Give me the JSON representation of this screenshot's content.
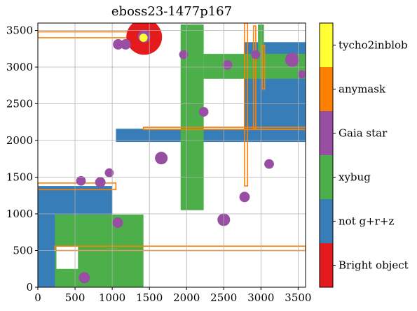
{
  "chart_data": {
    "type": "heatmap",
    "title": "eboss23-1477p167",
    "xlabel": "",
    "ylabel": "",
    "xlim": [
      0,
      3600
    ],
    "ylim": [
      0,
      3600
    ],
    "grid": true,
    "xticks": [
      "0",
      "500",
      "1000",
      "1500",
      "2000",
      "2500",
      "3000",
      "3500"
    ],
    "yticks": [
      "0",
      "500",
      "1000",
      "1500",
      "2000",
      "2500",
      "3000",
      "3500"
    ],
    "colorbar": {
      "placement": "right",
      "categories": [
        {
          "label": "Bright object",
          "color": "#e41a1c"
        },
        {
          "label": "not g+r+z",
          "color": "#377eb8"
        },
        {
          "label": "xybug",
          "color": "#4daf4a"
        },
        {
          "label": "Gaia star",
          "color": "#984ea3"
        },
        {
          "label": "anymask",
          "color": "#ff7f00"
        },
        {
          "label": "tycho2inblob",
          "color": "#ffff33"
        }
      ]
    },
    "regions": {
      "not_grz": [
        {
          "x": [
            0,
            1000
          ],
          "y": [
            0,
            1380
          ]
        },
        {
          "x": [
            1050,
            3600
          ],
          "y": [
            1980,
            2160
          ]
        },
        {
          "x": [
            2770,
            3600
          ],
          "y": [
            2160,
            3340
          ]
        }
      ],
      "xybug": [
        {
          "x": [
            230,
            1420
          ],
          "y": [
            0,
            990
          ]
        },
        {
          "x": [
            1920,
            2230
          ],
          "y": [
            1050,
            3580
          ]
        },
        {
          "x": [
            2230,
            3600
          ],
          "y": [
            2840,
            3180
          ]
        },
        {
          "x": [
            2960,
            3040
          ],
          "y": [
            3180,
            3580
          ]
        }
      ],
      "anymask": [
        {
          "x": [
            0,
            1050
          ],
          "y": [
            1330,
            1420
          ]
        },
        {
          "x": [
            0,
            1450
          ],
          "y": [
            3400,
            3480
          ]
        },
        {
          "x": [
            230,
            3600
          ],
          "y": [
            500,
            560
          ]
        },
        {
          "x": [
            1420,
            3600
          ],
          "y": [
            2150,
            2180
          ]
        },
        {
          "x": [
            2780,
            2820
          ],
          "y": [
            1380,
            3600
          ]
        },
        {
          "x": [
            2900,
            2930
          ],
          "y": [
            2160,
            3560
          ]
        },
        {
          "x": [
            3020,
            3050
          ],
          "y": [
            2700,
            3300
          ]
        }
      ],
      "not_grz_holes": [
        {
          "x": [
            250,
            540
          ],
          "y": [
            250,
            560
          ]
        }
      ]
    },
    "gaia_stars": [
      {
        "x": 625,
        "y": 130,
        "r": 75
      },
      {
        "x": 1075,
        "y": 880,
        "r": 70
      },
      {
        "x": 840,
        "y": 1430,
        "r": 70
      },
      {
        "x": 580,
        "y": 1450,
        "r": 65
      },
      {
        "x": 960,
        "y": 1560,
        "r": 60
      },
      {
        "x": 1660,
        "y": 1760,
        "r": 85
      },
      {
        "x": 2500,
        "y": 920,
        "r": 85
      },
      {
        "x": 2780,
        "y": 1230,
        "r": 70
      },
      {
        "x": 3110,
        "y": 1680,
        "r": 65
      },
      {
        "x": 2230,
        "y": 2390,
        "r": 65
      },
      {
        "x": 2550,
        "y": 3030,
        "r": 65
      },
      {
        "x": 1960,
        "y": 3170,
        "r": 60
      },
      {
        "x": 1080,
        "y": 3310,
        "r": 70
      },
      {
        "x": 1180,
        "y": 3310,
        "r": 70
      },
      {
        "x": 3420,
        "y": 3100,
        "r": 95
      },
      {
        "x": 3550,
        "y": 2900,
        "r": 55
      },
      {
        "x": 2930,
        "y": 3170,
        "r": 60
      },
      {
        "x": 1430,
        "y": 3420,
        "r": 85
      }
    ],
    "bright_objects": [
      {
        "x": 1430,
        "y": 3410,
        "r": 240
      }
    ],
    "tycho2inblob": [
      {
        "x": 1420,
        "y": 3400,
        "r": 55
      }
    ]
  }
}
